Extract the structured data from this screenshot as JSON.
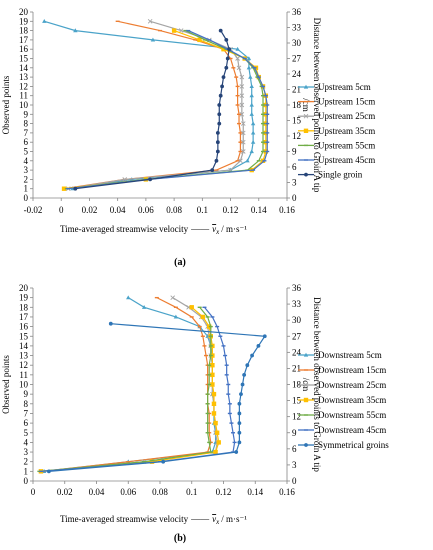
{
  "chart_data": [
    {
      "id": "a",
      "type": "line",
      "panel_label": "(a)",
      "xlabel_text": "Time-averaged streamwise velocity",
      "xlabel_unit": "/ m·s⁻¹",
      "xlabel_symbol": "v",
      "xlabel_symbol_sub": "x",
      "ylabel": "Observed points",
      "y2label_line1": "Distance between observed points to Groin A tip",
      "y2label_line2": "/cm",
      "xticks": [
        "-0.02",
        "0",
        "0.02",
        "0.04",
        "0.06",
        "0.08",
        "0.1",
        "0.12",
        "0.14",
        "0.16"
      ],
      "yticks": [
        "0",
        "1",
        "2",
        "3",
        "4",
        "5",
        "6",
        "7",
        "8",
        "9",
        "10",
        "11",
        "12",
        "13",
        "14",
        "15",
        "16",
        "17",
        "18",
        "19",
        "20"
      ],
      "y2ticks": [
        "0",
        "3",
        "6",
        "9",
        "12",
        "15",
        "18",
        "21",
        "24",
        "27",
        "30",
        "33",
        "36"
      ],
      "xlim": [
        -0.02,
        0.16
      ],
      "ylim": [
        0,
        20
      ],
      "y2lim": [
        0,
        36
      ],
      "legend_position": "right",
      "grid": false,
      "series": [
        {
          "name": "Upstream 5cm",
          "color": "#4aa3c9",
          "marker": "triangle",
          "y": [
            19,
            18,
            17,
            16,
            15,
            14,
            13,
            12,
            11,
            10,
            9,
            8,
            7,
            6,
            5,
            4,
            3,
            2,
            1
          ],
          "x": [
            -0.012,
            0.01,
            0.065,
            0.125,
            0.133,
            0.133,
            0.134,
            0.135,
            0.135,
            0.135,
            0.135,
            0.136,
            0.136,
            0.136,
            0.135,
            0.132,
            0.12,
            0.05,
            0.008
          ]
        },
        {
          "name": "Upstream 15cm",
          "color": "#ed7d31",
          "marker": "dash",
          "y": [
            19,
            18,
            17,
            16,
            15,
            14,
            13,
            12,
            11,
            10,
            9,
            8,
            7,
            6,
            5,
            4,
            3,
            2,
            1
          ],
          "x": [
            0.04,
            0.07,
            0.095,
            0.115,
            0.12,
            0.122,
            0.124,
            0.125,
            0.125,
            0.125,
            0.126,
            0.126,
            0.127,
            0.127,
            0.127,
            0.125,
            0.11,
            0.045,
            0.002
          ]
        },
        {
          "name": "Upstream 25cm",
          "color": "#a5a5a5",
          "marker": "cross",
          "y": [
            19,
            18,
            17,
            16,
            15,
            14,
            13,
            12,
            11,
            10,
            9,
            8,
            7,
            6,
            5,
            4,
            3,
            2,
            1
          ],
          "x": [
            0.063,
            0.085,
            0.105,
            0.12,
            0.125,
            0.126,
            0.128,
            0.128,
            0.128,
            0.128,
            0.128,
            0.129,
            0.129,
            0.129,
            0.129,
            0.127,
            0.12,
            0.045,
            0.005
          ]
        },
        {
          "name": "Upstream 35cm",
          "color": "#ffc000",
          "marker": "square",
          "y": [
            18,
            17,
            16,
            15,
            14,
            13,
            12,
            11,
            10,
            9,
            8,
            7,
            6,
            5,
            4,
            3,
            2,
            1
          ],
          "x": [
            0.08,
            0.098,
            0.115,
            0.13,
            0.138,
            0.14,
            0.143,
            0.145,
            0.145,
            0.145,
            0.145,
            0.145,
            0.145,
            0.145,
            0.143,
            0.135,
            0.06,
            0.002
          ]
        },
        {
          "name": "Upstream 55cm",
          "color": "#70ad47",
          "marker": "dash",
          "y": [
            18,
            17,
            16,
            15,
            14,
            13,
            12,
            11,
            10,
            9,
            8,
            7,
            6,
            5,
            4,
            3,
            2,
            1
          ],
          "x": [
            0.088,
            0.102,
            0.117,
            0.13,
            0.136,
            0.139,
            0.142,
            0.143,
            0.143,
            0.143,
            0.143,
            0.143,
            0.143,
            0.143,
            0.14,
            0.132,
            0.06,
            0.004
          ]
        },
        {
          "name": "Upstream 45cm",
          "color": "#4472c4",
          "marker": "dash",
          "y": [
            18,
            17,
            16,
            15,
            14,
            13,
            12,
            11,
            10,
            9,
            8,
            7,
            6,
            5,
            4,
            3,
            2,
            1
          ],
          "x": [
            0.09,
            0.105,
            0.118,
            0.13,
            0.137,
            0.14,
            0.143,
            0.145,
            0.146,
            0.146,
            0.146,
            0.146,
            0.146,
            0.146,
            0.144,
            0.136,
            0.062,
            0.005
          ]
        },
        {
          "name": "Single groin",
          "color": "#264478",
          "marker": "circle",
          "y": [
            18,
            17,
            16,
            15,
            14,
            13,
            12,
            11,
            10,
            9,
            8,
            7,
            6,
            5,
            4,
            3,
            2,
            1
          ],
          "x": [
            0.113,
            0.117,
            0.119,
            0.118,
            0.117,
            0.115,
            0.114,
            0.113,
            0.112,
            0.112,
            0.112,
            0.111,
            0.111,
            0.111,
            0.11,
            0.107,
            0.063,
            0.01
          ]
        }
      ]
    },
    {
      "id": "b",
      "type": "line",
      "panel_label": "(b)",
      "xlabel_text": "Time-averaged streamwise velocity",
      "xlabel_unit": "/ m·s⁻¹",
      "xlabel_symbol": "v",
      "xlabel_symbol_sub": "x",
      "ylabel": "Observed points",
      "y2label_line1": "Distance between observed points to Groin A tip",
      "y2label_line2": "/cm",
      "xticks": [
        "0",
        "0.02",
        "0.04",
        "0.06",
        "0.08",
        "0.1",
        "0.12",
        "0.14",
        "0.16"
      ],
      "yticks": [
        "0",
        "1",
        "2",
        "3",
        "4",
        "5",
        "6",
        "7",
        "8",
        "9",
        "10",
        "11",
        "12",
        "13",
        "14",
        "15",
        "16",
        "17",
        "18",
        "19",
        "20"
      ],
      "y2ticks": [
        "0",
        "3",
        "6",
        "9",
        "12",
        "15",
        "18",
        "21",
        "24",
        "27",
        "30",
        "33",
        "36"
      ],
      "xlim": [
        0,
        0.16
      ],
      "ylim": [
        0,
        20
      ],
      "y2lim": [
        0,
        36
      ],
      "legend_position": "right",
      "grid": false,
      "series": [
        {
          "name": "Downstream 5cm",
          "color": "#4aa3c9",
          "marker": "triangle",
          "y": [
            19,
            18,
            17,
            16,
            15,
            14,
            13,
            12,
            11,
            10,
            9,
            8,
            7,
            6,
            5,
            4,
            3,
            2,
            1
          ],
          "x": [
            0.06,
            0.07,
            0.09,
            0.105,
            0.11,
            0.112,
            0.113,
            0.113,
            0.113,
            0.113,
            0.113,
            0.114,
            0.114,
            0.114,
            0.115,
            0.115,
            0.113,
            0.06,
            0.007
          ]
        },
        {
          "name": "Downstream 15cm",
          "color": "#ed7d31",
          "marker": "dash",
          "y": [
            19,
            18,
            17,
            16,
            15,
            14,
            13,
            12,
            11,
            10,
            9,
            8,
            7,
            6,
            5,
            4,
            3,
            2,
            1
          ],
          "x": [
            0.078,
            0.09,
            0.1,
            0.105,
            0.107,
            0.108,
            0.109,
            0.11,
            0.11,
            0.11,
            0.11,
            0.11,
            0.111,
            0.111,
            0.111,
            0.112,
            0.11,
            0.06,
            0.006
          ]
        },
        {
          "name": "Downstream 25cm",
          "color": "#a5a5a5",
          "marker": "cross",
          "y": [
            19,
            18,
            17,
            16,
            15,
            14,
            13,
            12,
            11,
            10,
            9,
            8,
            7,
            6,
            5,
            4,
            3,
            2,
            1
          ],
          "x": [
            0.088,
            0.098,
            0.106,
            0.11,
            0.111,
            0.112,
            0.112,
            0.113,
            0.113,
            0.113,
            0.113,
            0.114,
            0.114,
            0.115,
            0.115,
            0.116,
            0.115,
            0.07,
            0.005
          ]
        },
        {
          "name": "Downstream 35cm",
          "color": "#ffc000",
          "marker": "square",
          "y": [
            18,
            17,
            16,
            15,
            14,
            13,
            12,
            11,
            10,
            9,
            8,
            7,
            6,
            5,
            4,
            3,
            2,
            1
          ],
          "x": [
            0.1,
            0.107,
            0.111,
            0.112,
            0.113,
            0.113,
            0.113,
            0.113,
            0.113,
            0.114,
            0.114,
            0.114,
            0.115,
            0.116,
            0.117,
            0.115,
            0.075,
            0.005
          ]
        },
        {
          "name": "Downstream 55cm",
          "color": "#70ad47",
          "marker": "dash",
          "y": [
            18,
            17,
            16,
            15,
            14,
            13,
            12,
            11,
            10,
            9,
            8,
            7,
            6,
            5,
            4,
            3,
            2,
            1
          ],
          "x": [
            0.105,
            0.11,
            0.112,
            0.112,
            0.112,
            0.112,
            0.111,
            0.111,
            0.111,
            0.11,
            0.11,
            0.11,
            0.11,
            0.11,
            0.111,
            0.112,
            0.07,
            0.004
          ]
        },
        {
          "name": "Downstream 45cm",
          "color": "#4472c4",
          "marker": "dash",
          "y": [
            18,
            17,
            16,
            15,
            14,
            13,
            12,
            11,
            10,
            9,
            8,
            7,
            6,
            5,
            4,
            3,
            2,
            1
          ],
          "x": [
            0.108,
            0.113,
            0.116,
            0.118,
            0.12,
            0.121,
            0.122,
            0.122,
            0.123,
            0.123,
            0.124,
            0.124,
            0.125,
            0.126,
            0.127,
            0.126,
            0.08,
            0.005
          ]
        },
        {
          "name": "Symmetrical groins",
          "color": "#2e75b6",
          "marker": "circle",
          "y": [
            16.3,
            15,
            14,
            13,
            12,
            11,
            10,
            9,
            8,
            7,
            6,
            5,
            4,
            3,
            2,
            1
          ],
          "x": [
            0.049,
            0.146,
            0.142,
            0.138,
            0.135,
            0.133,
            0.132,
            0.131,
            0.13,
            0.13,
            0.13,
            0.13,
            0.13,
            0.128,
            0.082,
            0.01
          ]
        }
      ]
    }
  ]
}
